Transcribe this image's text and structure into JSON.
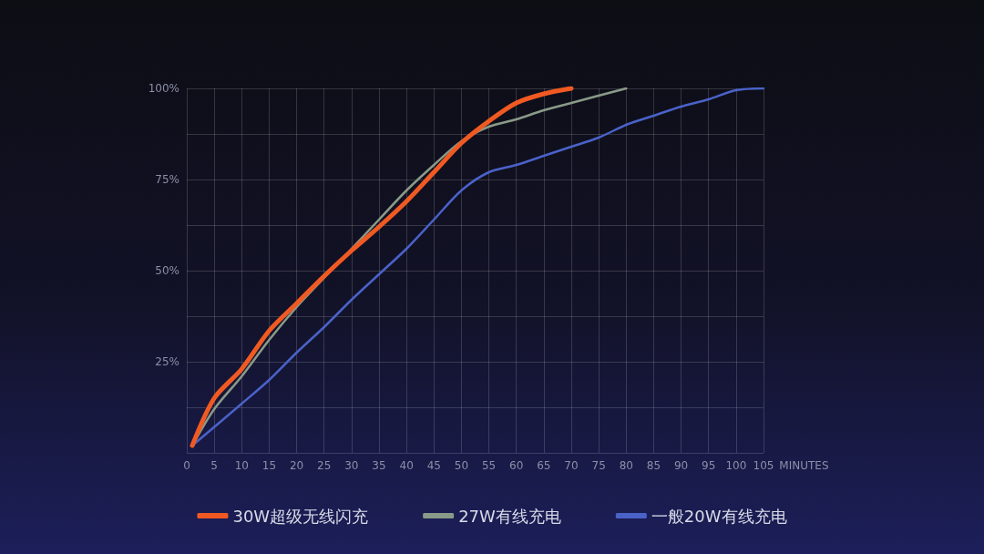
{
  "chart_data": {
    "type": "line",
    "xlabel": "MINUTES",
    "xlim": [
      0,
      105
    ],
    "xticks": [
      0,
      5,
      10,
      15,
      20,
      25,
      30,
      35,
      40,
      45,
      50,
      55,
      60,
      65,
      70,
      75,
      80,
      85,
      90,
      95,
      100,
      105
    ],
    "ylim": [
      0,
      100
    ],
    "yticks": [
      {
        "value": 0,
        "label": null
      },
      {
        "value": 12.5,
        "label": null
      },
      {
        "value": 25,
        "label": "25%"
      },
      {
        "value": 37.5,
        "label": null
      },
      {
        "value": 50,
        "label": "50%"
      },
      {
        "value": 62.5,
        "label": null
      },
      {
        "value": 75,
        "label": "75%"
      },
      {
        "value": 87.5,
        "label": null
      },
      {
        "value": 100,
        "label": "100%"
      }
    ],
    "grid": true,
    "legend": "bottom",
    "marker": "none",
    "line_style": "solid",
    "series": [
      {
        "name": "30W超级无线闪充",
        "color": "#f05a22",
        "x": [
          1,
          5,
          10,
          15,
          20,
          25,
          30,
          35,
          40,
          45,
          50,
          55,
          60,
          65,
          70
        ],
        "values": [
          2,
          15,
          23,
          33.5,
          41,
          48.5,
          55.5,
          62,
          69,
          77,
          85,
          91,
          96,
          98.5,
          100
        ]
      },
      {
        "name": "27W有线充电",
        "color": "#8a9a88",
        "x": [
          1,
          5,
          10,
          15,
          20,
          25,
          30,
          35,
          40,
          45,
          50,
          55,
          60,
          65,
          70,
          80
        ],
        "values": [
          2,
          12,
          21,
          31,
          40,
          48,
          56,
          64,
          72,
          79,
          85.5,
          89.5,
          91.5,
          94,
          96,
          100
        ]
      },
      {
        "name": "一般20W有线充电",
        "color": "#4a62c8",
        "x": [
          1,
          10,
          15,
          20,
          25,
          30,
          35,
          40,
          45,
          50,
          55,
          60,
          65,
          70,
          75,
          80,
          85,
          90,
          95,
          100,
          105
        ],
        "values": [
          2,
          13.5,
          20,
          27.5,
          34.5,
          42,
          49,
          56,
          64,
          72,
          77,
          79,
          81.5,
          84,
          86.5,
          90,
          92.5,
          95,
          97,
          99.5,
          100
        ]
      }
    ]
  }
}
